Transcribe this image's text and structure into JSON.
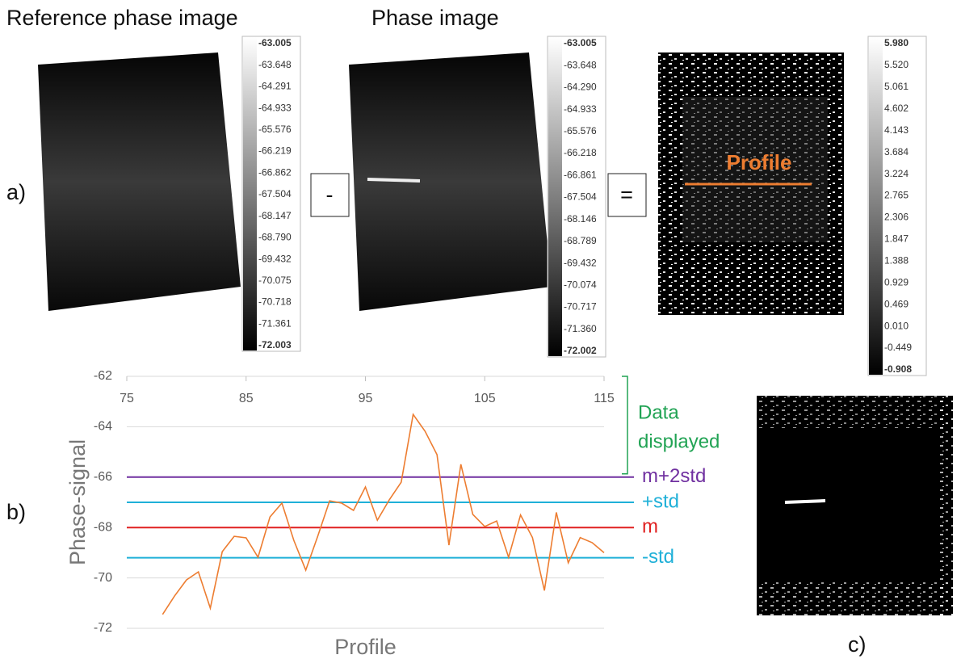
{
  "figure": {
    "panel_labels": [
      "a)",
      "b)",
      "c)"
    ],
    "image_titles": [
      "Reference phase image",
      "Phase image"
    ],
    "operators": [
      "-",
      "="
    ],
    "profile_annotation": "Profile",
    "colorbars": [
      [
        "-63.005",
        "-63.648",
        "-64.291",
        "-64.933",
        "-65.576",
        "-66.219",
        "-66.862",
        "-67.504",
        "-68.147",
        "-68.790",
        "-69.432",
        "-70.075",
        "-70.718",
        "-71.361",
        "-72.003"
      ],
      [
        "-63.005",
        "-63.648",
        "-64.290",
        "-64.933",
        "-65.576",
        "-66.218",
        "-66.861",
        "-67.504",
        "-68.146",
        "-68.789",
        "-69.432",
        "-70.074",
        "-70.717",
        "-71.360",
        "-72.002"
      ],
      [
        "5.980",
        "5.520",
        "5.061",
        "4.602",
        "4.143",
        "3.684",
        "3.224",
        "2.765",
        "2.306",
        "1.847",
        "1.388",
        "0.929",
        "0.469",
        "0.010",
        "-0.449",
        "-0.908"
      ]
    ]
  },
  "chart_data": {
    "type": "line",
    "x_label": "Profile",
    "y_label": "Phase-signal",
    "x": [
      78,
      79,
      80,
      81,
      82,
      83,
      84,
      85,
      86,
      87,
      88,
      89,
      90,
      91,
      92,
      93,
      94,
      95,
      96,
      97,
      98,
      99,
      100,
      101,
      102,
      103,
      104,
      105,
      106,
      107,
      108,
      109,
      110,
      111,
      112,
      113,
      114,
      115
    ],
    "series": [
      {
        "name": "Profile",
        "color": "#ed7d31",
        "values": [
          -71.45,
          -70.72,
          -70.08,
          -69.76,
          -71.2,
          -68.96,
          -68.35,
          -68.41,
          -69.18,
          -67.58,
          -67.03,
          -68.51,
          -69.69,
          -68.35,
          -66.94,
          -67.03,
          -67.32,
          -66.39,
          -67.71,
          -66.9,
          -66.2,
          -63.51,
          -64.18,
          -65.11,
          -68.7,
          -65.49,
          -67.48,
          -67.96,
          -67.74,
          -69.18,
          -67.5,
          -68.4,
          -70.5,
          -67.4,
          -69.4,
          -68.4,
          -68.6,
          -69.0
        ]
      }
    ],
    "reference_lines": [
      {
        "name": "m+2std",
        "value": -66,
        "color": "#7030a0"
      },
      {
        "name": "+std",
        "value": -67,
        "color": "#1fb0d8"
      },
      {
        "name": "m",
        "value": -68,
        "color": "#e02020"
      },
      {
        "name": "-std",
        "value": -69.2,
        "color": "#1fb0d8"
      }
    ],
    "annotation": {
      "lines": [
        "Data",
        "displayed"
      ],
      "color": "#21a354"
    },
    "xlim": [
      75,
      115
    ],
    "xticks": [
      75,
      85,
      95,
      105,
      115
    ],
    "ylim": [
      -72,
      -62
    ],
    "yticks": [
      -62,
      -64,
      -66,
      -68,
      -70,
      -72
    ],
    "grid": true
  }
}
